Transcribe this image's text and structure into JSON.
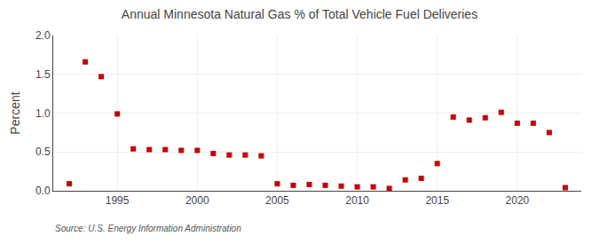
{
  "chart_data": {
    "type": "scatter",
    "title": "Annual Minnesota Natural Gas % of Total Vehicle Fuel Deliveries",
    "ylabel": "Percent",
    "annotations": [
      "Source: U.S. Energy Information Administration"
    ],
    "x": [
      1992,
      1993,
      1994,
      1995,
      1996,
      1997,
      1998,
      1999,
      2000,
      2001,
      2002,
      2003,
      2004,
      2005,
      2006,
      2007,
      2008,
      2009,
      2010,
      2011,
      2012,
      2013,
      2014,
      2015,
      2016,
      2017,
      2018,
      2019,
      2020,
      2021,
      2022,
      2023
    ],
    "values": [
      0.09,
      1.66,
      1.47,
      0.99,
      0.54,
      0.53,
      0.53,
      0.52,
      0.52,
      0.48,
      0.46,
      0.46,
      0.45,
      0.09,
      0.07,
      0.08,
      0.07,
      0.06,
      0.05,
      0.05,
      0.03,
      0.14,
      0.16,
      0.35,
      0.95,
      0.91,
      0.94,
      1.01,
      0.87,
      0.87,
      0.75,
      0.04
    ],
    "color": "#cc0000",
    "marker": "square",
    "xlim": [
      1991,
      2024
    ],
    "ylim": [
      0.0,
      2.0
    ],
    "xticks": [
      1995,
      2000,
      2005,
      2010,
      2015,
      2020
    ],
    "yticks": [
      {
        "value": 0.0,
        "label": "0.0"
      },
      0.5,
      {
        "value": 1.0,
        "label": "1.0"
      },
      1.5,
      {
        "value": 2.0,
        "label": "2.0"
      }
    ],
    "grid": true
  }
}
